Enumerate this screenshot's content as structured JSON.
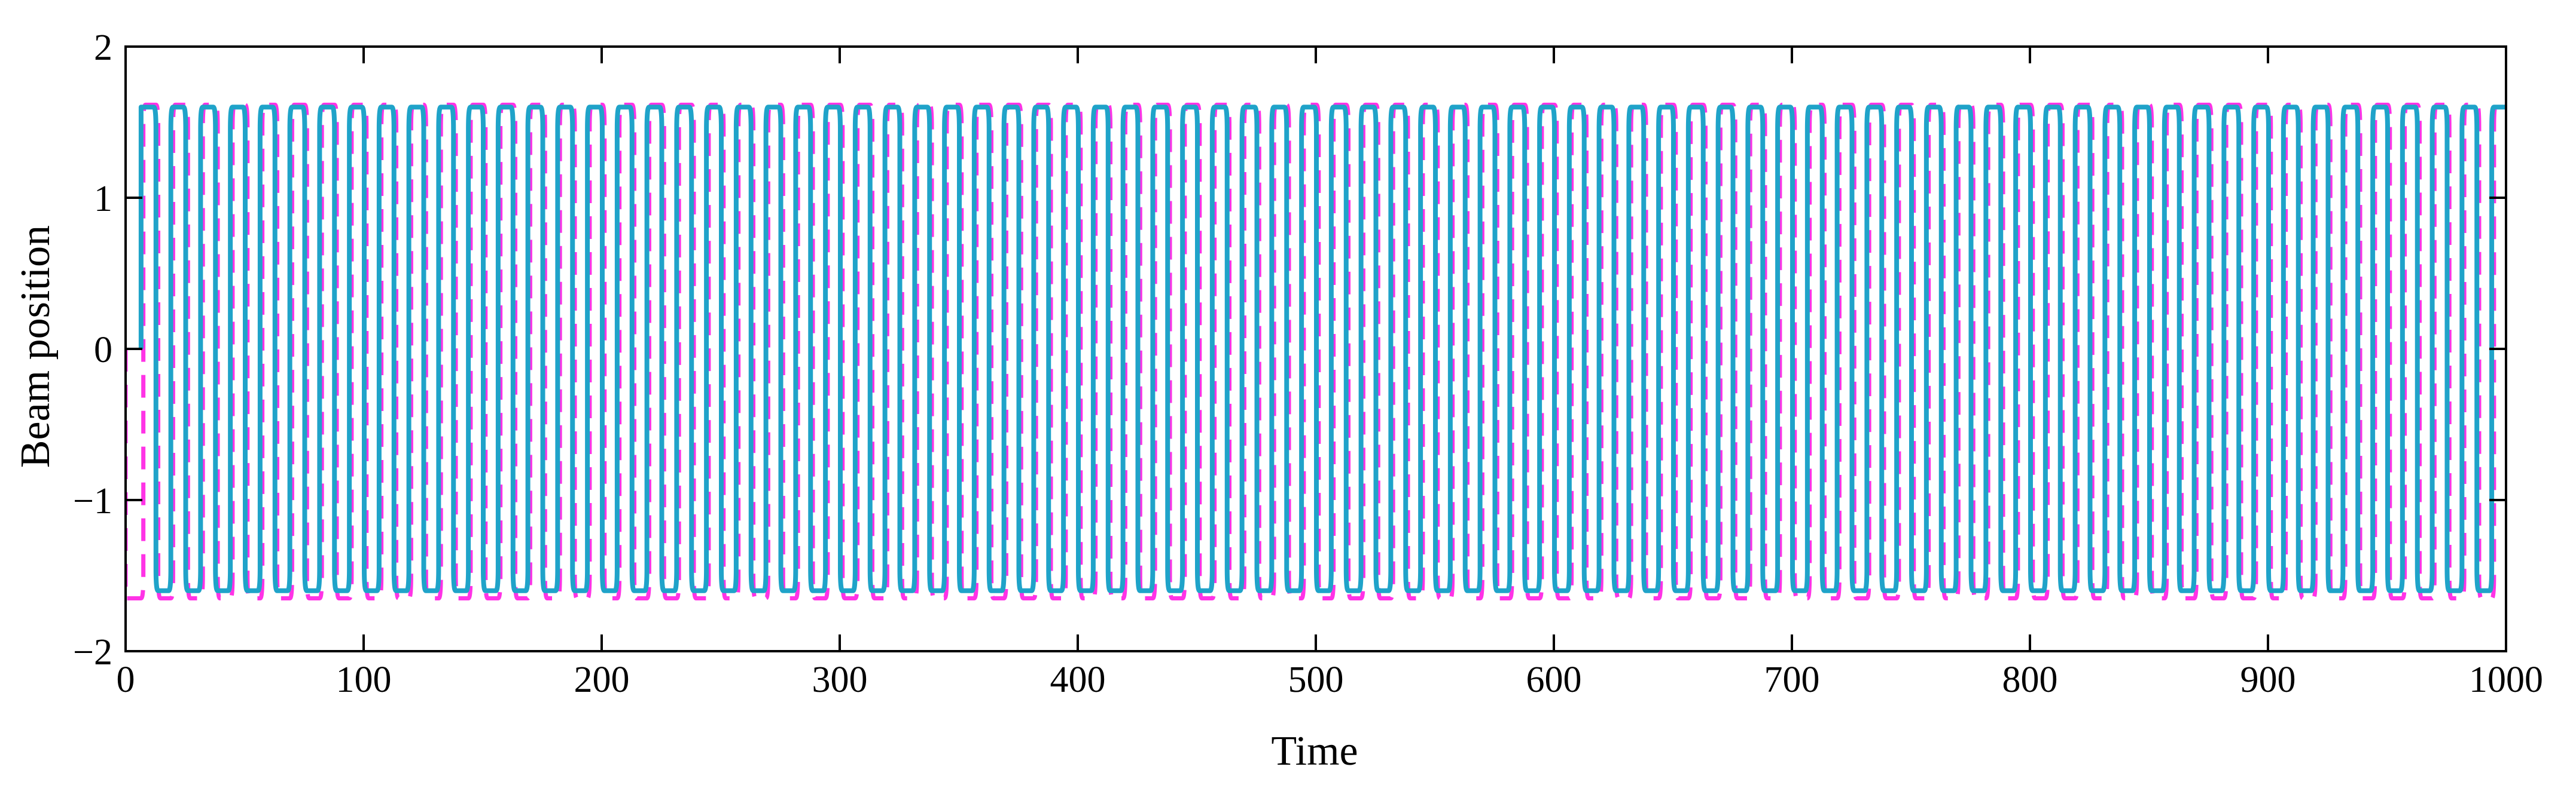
{
  "chart_data": {
    "type": "line",
    "title": "",
    "xlabel": "Time",
    "ylabel": "Beam position",
    "xlim": [
      0,
      1000
    ],
    "ylim": [
      -2,
      2
    ],
    "x_ticks": [
      0,
      100,
      200,
      300,
      400,
      500,
      600,
      700,
      800,
      900,
      1000
    ],
    "y_ticks": [
      -2,
      -1,
      0,
      1,
      2
    ],
    "x_tick_labels": [
      "0",
      "100",
      "200",
      "300",
      "400",
      "500",
      "600",
      "700",
      "800",
      "900",
      "1000"
    ],
    "y_tick_labels": [
      "−2",
      "−1",
      "0",
      "1",
      "2"
    ],
    "grid": false,
    "legend": "none",
    "period": 12.5,
    "series": [
      {
        "style": "solid",
        "color": "#1fa3c9",
        "amplitude": 1.6,
        "shape": "square-wave",
        "phase_offset": 0,
        "x_start": 6.5,
        "x_end": 1000
      },
      {
        "style": "dashed",
        "color": "#ff33e6",
        "amplitude": 1.6,
        "overshoot": 0.05,
        "shape": "square-wave",
        "phase_offset": 1.2,
        "x_start": 0,
        "x_end": 1000
      }
    ]
  }
}
